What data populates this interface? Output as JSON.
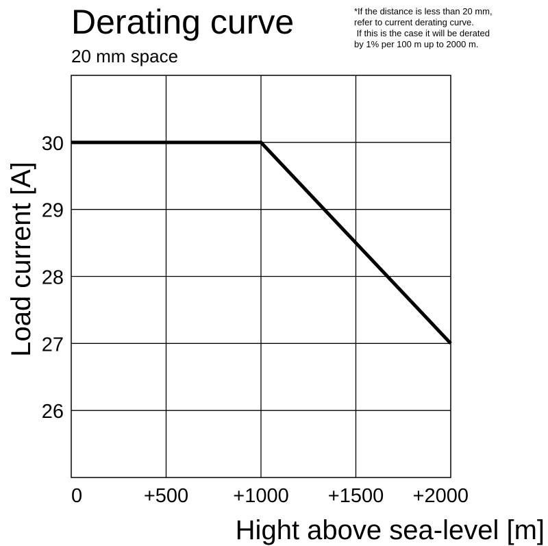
{
  "chart_data": {
    "type": "line",
    "title": "Derating curve",
    "subtitle": "20 mm space",
    "note": [
      "*If the distance is less than 20 mm,",
      "refer to current derating curve.",
      " If this is the case it will be derated",
      "by 1% per 100 m up to 2000 m."
    ],
    "xlabel": "Hight above sea-level [m]",
    "ylabel": "Load current [A]",
    "xlim": [
      0,
      2000
    ],
    "ylim": [
      25,
      31
    ],
    "x_ticks": [
      0,
      500,
      1000,
      1500,
      2000
    ],
    "x_tick_labels": [
      "0",
      "+500",
      "+1000",
      "+1500",
      "+2000"
    ],
    "y_ticks": [
      26,
      27,
      28,
      29,
      30
    ],
    "y_tick_labels": [
      "26",
      "27",
      "28",
      "29",
      "30"
    ],
    "grid": true,
    "series": [
      {
        "name": "Load current",
        "x": [
          0,
          1000,
          2000
        ],
        "y": [
          30,
          30,
          27
        ]
      }
    ],
    "line_color": "#000000",
    "grid_color": "#000000"
  }
}
